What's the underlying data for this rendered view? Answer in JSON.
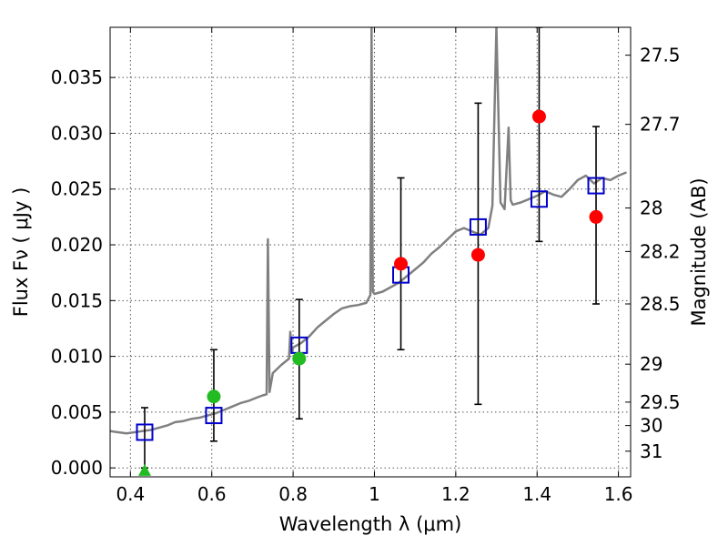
{
  "chart_data": {
    "type": "scatter",
    "title": "",
    "xlabel": "Wavelength  λ (μm)",
    "ylabel": "Flux  Fν  ( μJy )",
    "ylabel_right": "Magnitude (AB)",
    "xlim": [
      0.35,
      1.63
    ],
    "ylim": [
      -0.0008,
      0.0395
    ],
    "grid": true,
    "x_ticks": [
      0.4,
      0.6,
      0.8,
      1.0,
      1.2,
      1.4,
      1.6
    ],
    "x_tick_labels": [
      "0.4",
      "0.6",
      "0.8",
      "1",
      "1.2",
      "1.4",
      "1.6"
    ],
    "y_ticks": [
      0.0,
      0.005,
      0.01,
      0.015,
      0.02,
      0.025,
      0.03,
      0.035
    ],
    "y_tick_labels": [
      "0.000",
      "0.005",
      "0.010",
      "0.015",
      "0.020",
      "0.025",
      "0.030",
      "0.035"
    ],
    "right_ticks": [
      {
        "label": "27.5",
        "flux": 0.037
      },
      {
        "label": "27.7",
        "flux": 0.0308
      },
      {
        "label": "28",
        "flux": 0.0233
      },
      {
        "label": "28.2",
        "flux": 0.0194
      },
      {
        "label": "28.5",
        "flux": 0.0147
      },
      {
        "label": "29",
        "flux": 0.0093
      },
      {
        "label": "29.5",
        "flux": 0.0059
      },
      {
        "label": "30",
        "flux": 0.0038
      },
      {
        "label": "31",
        "flux": 0.0015
      }
    ],
    "colors": {
      "model": "#808080",
      "model_points": "#0000cc",
      "detections": "#ff0000",
      "marginal": "#22bb22",
      "errorbar": "#000000",
      "grid": "#555555"
    },
    "series": [
      {
        "kind": "model-spectrum",
        "x": [
          0.35,
          0.37,
          0.39,
          0.41,
          0.43,
          0.45,
          0.47,
          0.49,
          0.51,
          0.53,
          0.55,
          0.57,
          0.59,
          0.61,
          0.63,
          0.65,
          0.67,
          0.69,
          0.71,
          0.725,
          0.735,
          0.738,
          0.742,
          0.75,
          0.77,
          0.79,
          0.793,
          0.797,
          0.8,
          0.82,
          0.84,
          0.86,
          0.88,
          0.9,
          0.92,
          0.94,
          0.96,
          0.98,
          0.99,
          0.993,
          0.996,
          1.0,
          1.02,
          1.04,
          1.06,
          1.08,
          1.1,
          1.12,
          1.14,
          1.16,
          1.18,
          1.2,
          1.22,
          1.24,
          1.26,
          1.28,
          1.29,
          1.3,
          1.31,
          1.32,
          1.33,
          1.335,
          1.34,
          1.36,
          1.38,
          1.4,
          1.42,
          1.44,
          1.46,
          1.48,
          1.5,
          1.52,
          1.54,
          1.56,
          1.58,
          1.6,
          1.62
        ],
        "values": [
          0.0033,
          0.0032,
          0.0031,
          0.0032,
          0.0033,
          0.0034,
          0.0036,
          0.0038,
          0.0041,
          0.0042,
          0.0044,
          0.0045,
          0.0047,
          0.0049,
          0.0052,
          0.0055,
          0.0058,
          0.006,
          0.0063,
          0.0065,
          0.0066,
          0.0205,
          0.0068,
          0.0085,
          0.0092,
          0.0098,
          0.0122,
          0.0103,
          0.0108,
          0.0112,
          0.0118,
          0.0126,
          0.0132,
          0.0138,
          0.0143,
          0.0145,
          0.0146,
          0.0148,
          0.0155,
          0.0395,
          0.0158,
          0.0156,
          0.0158,
          0.0162,
          0.0166,
          0.0172,
          0.0178,
          0.0184,
          0.0192,
          0.0198,
          0.0205,
          0.0212,
          0.0215,
          0.0212,
          0.0209,
          0.0215,
          0.0235,
          0.0395,
          0.0238,
          0.0232,
          0.0305,
          0.024,
          0.0236,
          0.0238,
          0.0241,
          0.0244,
          0.0248,
          0.0245,
          0.0243,
          0.025,
          0.0258,
          0.0262,
          0.0255,
          0.026,
          0.0258,
          0.0262,
          0.0265
        ]
      },
      {
        "kind": "model-photometry",
        "x": [
          0.435,
          0.605,
          0.815,
          1.065,
          1.255,
          1.405,
          1.545
        ],
        "values": [
          0.0032,
          0.0047,
          0.011,
          0.0173,
          0.0216,
          0.0241,
          0.0253
        ]
      },
      {
        "kind": "detections",
        "x": [
          1.065,
          1.255,
          1.405,
          1.545
        ],
        "values": [
          0.0183,
          0.0191,
          0.0315,
          0.0225
        ],
        "err_low": [
          0.0106,
          0.0057,
          0.0203,
          0.0147
        ],
        "err_high": [
          0.026,
          0.0327,
          0.0395,
          0.0306
        ]
      },
      {
        "kind": "marginal",
        "x": [
          0.605,
          0.815
        ],
        "values": [
          0.0064,
          0.0098
        ],
        "err_low": [
          0.0024,
          0.0044
        ],
        "err_high": [
          0.0106,
          0.0151
        ]
      },
      {
        "kind": "upper-limit",
        "x": [
          0.435
        ],
        "values": [
          -0.0003
        ],
        "err_low": [
          0.0
        ],
        "err_high": [
          0.0054
        ]
      }
    ]
  }
}
